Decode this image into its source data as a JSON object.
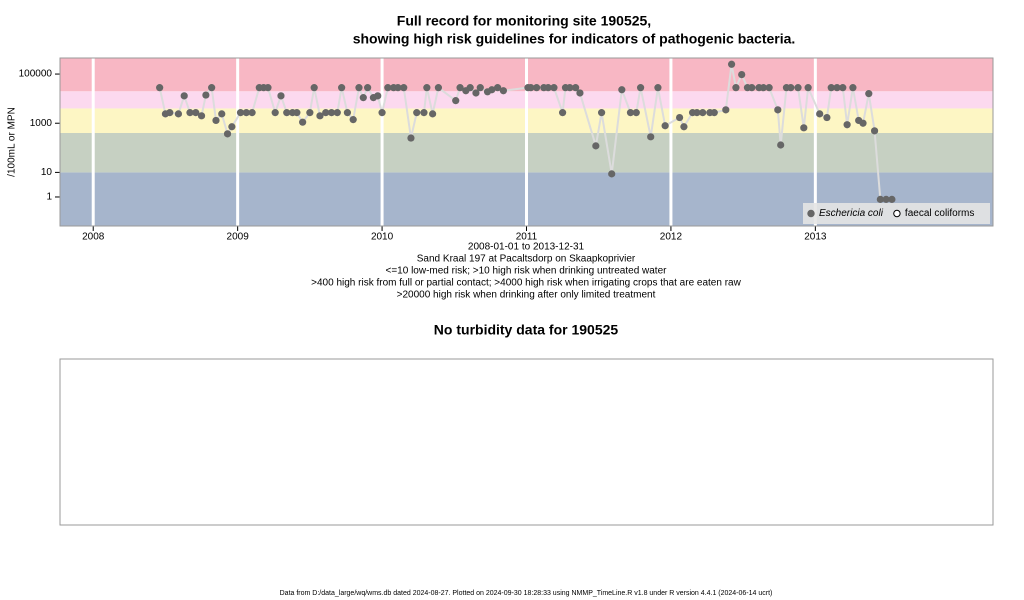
{
  "chart_data": [
    {
      "type": "scatter",
      "title": [
        "Full record for monitoring site 190525,",
        "showing high risk guidelines for indicators of pathogenic bacteria."
      ],
      "y_label": "/100mL or MPN",
      "annotations": [
        "2008-01-01 to 2013-12-31",
        "Sand Kraal 197 at Pacaltsdorp on Skaapkoprivier",
        "<=10 low-med risk; >10 high risk when drinking untreated water",
        ">400 high risk from full or partial contact; >4000 high risk when irrigating crops that are eaten raw",
        ">20000 high risk when drinking after only limited treatment"
      ],
      "log_y": true,
      "xlim": [
        2007.77,
        2014.23
      ],
      "xticks": [
        2008,
        2009,
        2010,
        2011,
        2012,
        2013
      ],
      "ylim": [
        0.066,
        450000
      ],
      "yticks": [
        1,
        10,
        1000,
        100000
      ],
      "band_edges": [
        10,
        400,
        4000,
        20000
      ],
      "band_colors": [
        "#a6b5cc",
        "#c6d0c2",
        "#fdf6c4",
        "#fcd9ef",
        "#f8b7c4"
      ],
      "legend": "bottom-right",
      "line_color": "#dcdcdc",
      "series": [
        {
          "name": "Eschericia coli",
          "color": "#666666",
          "filled": true,
          "x": [
            2008.46,
            2008.5,
            2008.53,
            2008.59,
            2008.63,
            2008.67,
            2008.71,
            2008.75,
            2008.78,
            2008.82,
            2008.85,
            2008.89,
            2008.93,
            2008.96,
            2009.02,
            2009.06,
            2009.1,
            2009.15,
            2009.18,
            2009.21,
            2009.26,
            2009.3,
            2009.34,
            2009.38,
            2009.41,
            2009.45,
            2009.5,
            2009.53,
            2009.57,
            2009.61,
            2009.65,
            2009.69,
            2009.72,
            2009.76,
            2009.8,
            2009.84,
            2009.87,
            2009.9,
            2009.94,
            2009.97,
            2010.0,
            2010.04,
            2010.08,
            2010.11,
            2010.15,
            2010.2,
            2010.24,
            2010.29,
            2010.31,
            2010.35,
            2010.39,
            2010.51,
            2010.54,
            2010.58,
            2010.61,
            2010.65,
            2010.68,
            2010.73,
            2010.76,
            2010.8,
            2010.84,
            2011.01,
            2011.03,
            2011.07,
            2011.12,
            2011.15,
            2011.19,
            2011.25,
            2011.27,
            2011.3,
            2011.34,
            2011.37,
            2011.48,
            2011.52,
            2011.59,
            2011.66,
            2011.72,
            2011.76,
            2011.79,
            2011.86,
            2011.91,
            2011.96,
            2012.06,
            2012.09,
            2012.15,
            2012.18,
            2012.22,
            2012.27,
            2012.3,
            2012.38,
            2012.42,
            2012.45,
            2012.49,
            2012.53,
            2012.56,
            2012.61,
            2012.64,
            2012.68,
            2012.74,
            2012.76,
            2012.8,
            2012.83,
            2012.88,
            2012.92,
            2012.95,
            2013.03,
            2013.08,
            2013.11,
            2013.15,
            2013.19,
            2013.22,
            2013.26,
            2013.3,
            2013.33,
            2013.37,
            2013.41,
            2013.45,
            2013.49,
            2013.53
          ],
          "values": [
            28000,
            2400,
            2700,
            2400,
            13000,
            2700,
            2700,
            2000,
            14000,
            28000,
            1300,
            2400,
            370,
            720,
            2700,
            2700,
            2700,
            28000,
            28000,
            28000,
            2700,
            13000,
            2700,
            2700,
            2700,
            1100,
            2700,
            28000,
            2000,
            2700,
            2700,
            2700,
            28000,
            2700,
            1400,
            28000,
            11000,
            28000,
            11000,
            13000,
            2700,
            28000,
            28000,
            28000,
            28000,
            250,
            2700,
            2700,
            28000,
            2400,
            28000,
            8300,
            28000,
            21000,
            28000,
            17000,
            28000,
            19000,
            23000,
            28000,
            21000,
            28000,
            28000,
            28000,
            28000,
            28000,
            28000,
            2700,
            28000,
            28000,
            28000,
            17000,
            120,
            2700,
            8.7,
            23000,
            2700,
            2700,
            28000,
            280,
            28000,
            790,
            1700,
            720,
            2700,
            2700,
            2700,
            2700,
            2700,
            3500,
            250000,
            28000,
            95000,
            28000,
            28000,
            28000,
            28000,
            28000,
            3500,
            130,
            28000,
            28000,
            28000,
            650,
            28000,
            2400,
            1700,
            28000,
            28000,
            28000,
            870,
            28000,
            1300,
            1000,
            16000,
            490,
            0.8,
            0.8,
            0.8
          ]
        },
        {
          "name": "faecal coliforms",
          "color": "#000000",
          "filled": false,
          "x": [],
          "values": []
        }
      ]
    },
    {
      "type": "empty",
      "title": "No turbidity data for 190525"
    }
  ],
  "footer": "Data from D:/data_large/wq/wms.db dated 2024-08-27. Plotted on 2024-09-30 18:28:33 using NMMP_TimeLine.R v1.8 under R version 4.4.1 (2024-06-14 ucrt)"
}
